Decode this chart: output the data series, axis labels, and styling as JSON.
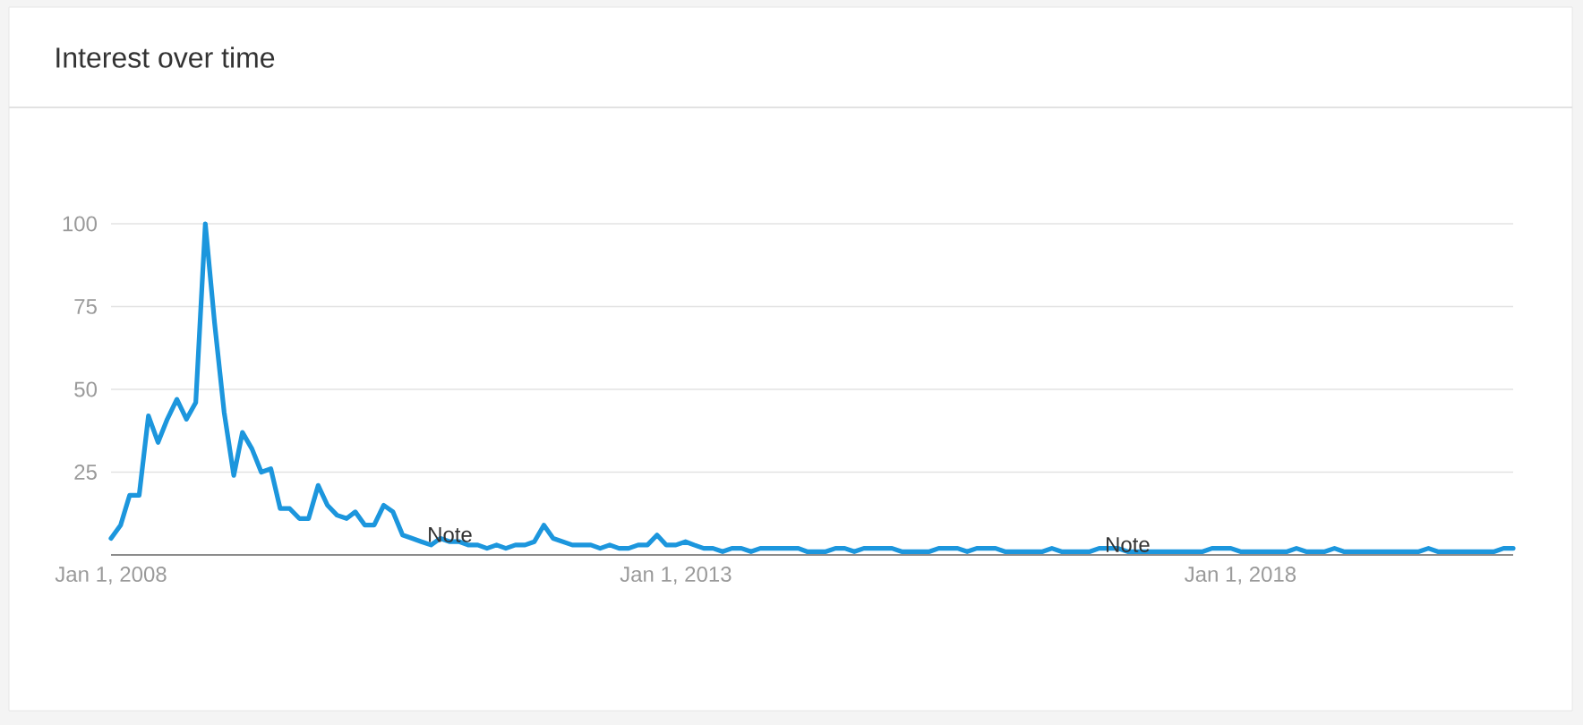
{
  "chart_data": {
    "type": "line",
    "title": "Interest over time",
    "x": [
      "2008-01",
      "2008-02",
      "2008-03",
      "2008-04",
      "2008-05",
      "2008-06",
      "2008-07",
      "2008-08",
      "2008-09",
      "2008-10",
      "2008-11",
      "2008-12",
      "2009-01",
      "2009-02",
      "2009-03",
      "2009-04",
      "2009-05",
      "2009-06",
      "2009-07",
      "2009-08",
      "2009-09",
      "2009-10",
      "2009-11",
      "2009-12",
      "2010-01",
      "2010-02",
      "2010-03",
      "2010-04",
      "2010-05",
      "2010-06",
      "2010-07",
      "2010-08",
      "2010-09",
      "2010-10",
      "2010-11",
      "2010-12",
      "2011-01",
      "2011-02",
      "2011-03",
      "2011-04",
      "2011-05",
      "2011-06",
      "2011-07",
      "2011-08",
      "2011-09",
      "2011-10",
      "2011-11",
      "2011-12",
      "2012-01",
      "2012-02",
      "2012-03",
      "2012-04",
      "2012-05",
      "2012-06",
      "2012-07",
      "2012-08",
      "2012-09",
      "2012-10",
      "2012-11",
      "2012-12",
      "2013-01",
      "2013-02",
      "2013-03",
      "2013-04",
      "2013-05",
      "2013-06",
      "2013-07",
      "2013-08",
      "2013-09",
      "2013-10",
      "2013-11",
      "2013-12",
      "2014-01",
      "2014-02",
      "2014-03",
      "2014-04",
      "2014-05",
      "2014-06",
      "2014-07",
      "2014-08",
      "2014-09",
      "2014-10",
      "2014-11",
      "2014-12",
      "2015-01",
      "2015-02",
      "2015-03",
      "2015-04",
      "2015-05",
      "2015-06",
      "2015-07",
      "2015-08",
      "2015-09",
      "2015-10",
      "2015-11",
      "2015-12",
      "2016-01",
      "2016-02",
      "2016-03",
      "2016-04",
      "2016-05",
      "2016-06",
      "2016-07",
      "2016-08",
      "2016-09",
      "2016-10",
      "2016-11",
      "2016-12",
      "2017-01",
      "2017-02",
      "2017-03",
      "2017-04",
      "2017-05",
      "2017-06",
      "2017-07",
      "2017-08",
      "2017-09",
      "2017-10",
      "2017-11",
      "2017-12",
      "2018-01",
      "2018-02",
      "2018-03",
      "2018-04",
      "2018-05",
      "2018-06",
      "2018-07",
      "2018-08",
      "2018-09",
      "2018-10",
      "2018-11",
      "2018-12",
      "2019-01",
      "2019-02",
      "2019-03",
      "2019-04",
      "2019-05",
      "2019-06",
      "2019-07",
      "2019-08",
      "2019-09",
      "2019-10",
      "2019-11",
      "2019-12",
      "2020-01",
      "2020-02",
      "2020-03",
      "2020-04",
      "2020-05",
      "2020-06"
    ],
    "values": [
      5,
      9,
      18,
      18,
      42,
      34,
      41,
      47,
      41,
      46,
      100,
      70,
      43,
      24,
      37,
      32,
      25,
      26,
      14,
      14,
      11,
      11,
      21,
      15,
      12,
      11,
      13,
      9,
      9,
      15,
      13,
      6,
      5,
      4,
      3,
      5,
      4,
      4,
      3,
      3,
      2,
      3,
      2,
      3,
      3,
      4,
      9,
      5,
      4,
      3,
      3,
      3,
      2,
      3,
      2,
      2,
      3,
      3,
      6,
      3,
      3,
      4,
      3,
      2,
      2,
      1,
      2,
      2,
      1,
      2,
      2,
      2,
      2,
      2,
      1,
      1,
      1,
      2,
      2,
      1,
      2,
      2,
      2,
      2,
      1,
      1,
      1,
      1,
      2,
      2,
      2,
      1,
      2,
      2,
      2,
      1,
      1,
      1,
      1,
      1,
      2,
      1,
      1,
      1,
      1,
      2,
      2,
      2,
      1,
      1,
      1,
      1,
      1,
      1,
      1,
      1,
      1,
      2,
      2,
      2,
      1,
      1,
      1,
      1,
      1,
      1,
      2,
      1,
      1,
      1,
      2,
      1,
      1,
      1,
      1,
      1,
      1,
      1,
      1,
      1,
      2,
      1,
      1,
      1,
      1,
      1,
      1,
      1,
      2,
      2
    ],
    "color": "#1c96dd",
    "xlim": [
      "2008-01",
      "2020-06"
    ],
    "ylim": [
      0,
      100
    ],
    "xticks": [
      {
        "value": "2008-01-01",
        "label": "Jan 1, 2008"
      },
      {
        "value": "2013-01-01",
        "label": "Jan 1, 2013"
      },
      {
        "value": "2018-01-01",
        "label": "Jan 1, 2018"
      }
    ],
    "yticks": [
      25,
      50,
      75,
      100
    ],
    "grid": "y",
    "annotations": [
      {
        "text": "Note",
        "x": "2011-01",
        "y": 4
      },
      {
        "text": "Note",
        "x": "2017-01",
        "y": 1
      }
    ]
  }
}
